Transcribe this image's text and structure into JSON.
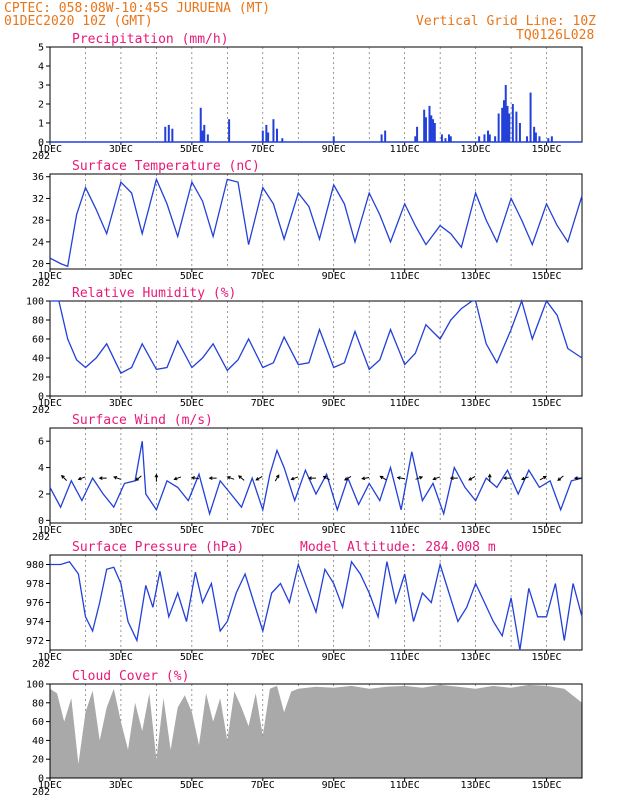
{
  "header": {
    "line1": "CPTEC:  058:08W-10:45S  JURUENA (MT)",
    "line2": "01DEC2020 10Z (GMT)",
    "grid_note": "Vertical Grid Line: 10Z",
    "code": "TQ0126L028"
  },
  "colors": {
    "header": "#e8761a",
    "title": "#e8197a",
    "series": "#2340d8",
    "cloud": "#a9a9a9",
    "wind_arrow": "#000000"
  },
  "x_ticks": [
    "1DEC",
    "3DEC",
    "5DEC",
    "7DEC",
    "9DEC",
    "11DEC",
    "13DEC",
    "15DEC"
  ],
  "year_label": "202",
  "chart_data": [
    {
      "id": "precip",
      "type": "bar",
      "title": "Precipitation (mm/h)",
      "ylim": [
        0,
        5
      ],
      "yticks": [
        0,
        1,
        2,
        3,
        4,
        5
      ],
      "x_unit": "days since 01DEC 10Z",
      "xlim": [
        0,
        15
      ],
      "x": [
        3.25,
        3.35,
        3.45,
        4.25,
        4.3,
        4.35,
        4.45,
        5.05,
        6.0,
        6.1,
        6.15,
        6.3,
        6.4,
        6.55,
        8.0,
        9.35,
        9.45,
        10.3,
        10.35,
        10.55,
        10.6,
        10.7,
        10.75,
        10.8,
        10.85,
        11.05,
        11.15,
        11.25,
        11.3,
        12.1,
        12.25,
        12.35,
        12.4,
        12.55,
        12.65,
        12.75,
        12.8,
        12.85,
        12.9,
        12.95,
        13.05,
        13.15,
        13.25,
        13.45,
        13.55,
        13.65,
        13.7,
        13.8,
        14.05,
        14.15
      ],
      "values": [
        0.8,
        0.9,
        0.7,
        1.8,
        0.6,
        0.9,
        0.4,
        1.2,
        0.6,
        0.9,
        0.5,
        1.2,
        0.7,
        0.2,
        0.3,
        0.4,
        0.6,
        0.3,
        0.8,
        1.7,
        1.3,
        1.9,
        1.4,
        1.2,
        1.0,
        0.4,
        0.2,
        0.4,
        0.3,
        0.3,
        0.4,
        0.6,
        0.4,
        0.3,
        1.5,
        1.8,
        2.2,
        3.0,
        1.9,
        1.5,
        2.0,
        1.6,
        1.0,
        0.3,
        2.6,
        0.8,
        0.5,
        0.3,
        0.2,
        0.3
      ]
    },
    {
      "id": "temp",
      "type": "line",
      "title": "Surface Temperature (nC)",
      "ylim": [
        19,
        36.5
      ],
      "yticks": [
        20,
        24,
        28,
        32,
        36
      ],
      "x": [
        0,
        0.3,
        0.5,
        0.75,
        1.0,
        1.3,
        1.6,
        2.0,
        2.3,
        2.6,
        3.0,
        3.3,
        3.6,
        4.0,
        4.3,
        4.6,
        5.0,
        5.3,
        5.6,
        6.0,
        6.3,
        6.6,
        7.0,
        7.3,
        7.6,
        8.0,
        8.3,
        8.6,
        9.0,
        9.3,
        9.6,
        10.0,
        10.3,
        10.6,
        11.0,
        11.3,
        11.6,
        12.0,
        12.3,
        12.6,
        13.0,
        13.3,
        13.6,
        14.0,
        14.3,
        14.6,
        15.0
      ],
      "values": [
        21.0,
        20.0,
        19.5,
        29.0,
        34.0,
        30.0,
        25.5,
        35.0,
        33.0,
        25.5,
        35.5,
        31.0,
        25.0,
        35.0,
        31.5,
        25.0,
        35.5,
        35.0,
        23.5,
        34.0,
        31.0,
        24.5,
        33.0,
        30.5,
        24.5,
        34.5,
        31.0,
        24.0,
        33.0,
        29.0,
        24.0,
        31.0,
        27.0,
        23.5,
        27.0,
        25.5,
        23.0,
        33.0,
        28.0,
        24.0,
        32.0,
        28.0,
        23.5,
        31.0,
        27.0,
        24.0,
        32.5
      ]
    },
    {
      "id": "rh",
      "type": "line",
      "title": "Relative Humidity (%)",
      "ylim": [
        0,
        100
      ],
      "yticks": [
        0,
        20,
        40,
        60,
        80,
        100
      ],
      "x": [
        0,
        0.25,
        0.5,
        0.75,
        1.0,
        1.3,
        1.6,
        2.0,
        2.3,
        2.6,
        3.0,
        3.3,
        3.6,
        4.0,
        4.3,
        4.6,
        5.0,
        5.3,
        5.6,
        6.0,
        6.3,
        6.6,
        7.0,
        7.3,
        7.6,
        8.0,
        8.3,
        8.6,
        9.0,
        9.3,
        9.6,
        10.0,
        10.3,
        10.6,
        11.0,
        11.3,
        11.6,
        11.9,
        12.0,
        12.3,
        12.6,
        13.0,
        13.3,
        13.6,
        14.0,
        14.3,
        14.6,
        15.0
      ],
      "values": [
        100,
        100,
        60,
        38,
        30,
        40,
        55,
        24,
        30,
        55,
        28,
        30,
        58,
        30,
        40,
        55,
        27,
        38,
        60,
        30,
        35,
        62,
        33,
        35,
        70,
        30,
        35,
        68,
        28,
        38,
        70,
        33,
        45,
        75,
        60,
        80,
        92,
        100,
        100,
        55,
        35,
        70,
        100,
        60,
        100,
        85,
        50,
        40
      ]
    },
    {
      "id": "wind",
      "type": "line",
      "title": "Surface Wind (m/s)",
      "ylim": [
        -0.2,
        7.0
      ],
      "yticks": [
        0,
        2,
        4,
        6
      ],
      "x": [
        0,
        0.3,
        0.6,
        0.9,
        1.2,
        1.5,
        1.8,
        2.1,
        2.4,
        2.6,
        2.7,
        3.0,
        3.3,
        3.6,
        3.9,
        4.2,
        4.5,
        4.8,
        5.1,
        5.4,
        5.7,
        6.0,
        6.2,
        6.4,
        6.6,
        6.9,
        7.2,
        7.5,
        7.8,
        8.1,
        8.4,
        8.7,
        9.0,
        9.3,
        9.6,
        9.9,
        10.2,
        10.5,
        10.8,
        11.1,
        11.4,
        11.7,
        12.0,
        12.3,
        12.6,
        12.9,
        13.2,
        13.5,
        13.8,
        14.1,
        14.4,
        14.7,
        15.0
      ],
      "values": [
        2.5,
        1.0,
        3.0,
        1.5,
        3.2,
        2.0,
        1.0,
        2.8,
        3.0,
        6.0,
        2.0,
        0.8,
        3.0,
        2.5,
        1.5,
        3.5,
        0.5,
        3.0,
        2.0,
        1.0,
        3.2,
        0.8,
        3.5,
        5.3,
        4.0,
        1.5,
        3.8,
        2.0,
        3.5,
        0.8,
        3.2,
        1.2,
        2.8,
        1.5,
        4.0,
        0.8,
        5.2,
        1.5,
        2.8,
        0.5,
        4.0,
        2.5,
        1.5,
        3.2,
        2.5,
        3.8,
        2.0,
        3.8,
        2.5,
        3.0,
        0.8,
        3.0,
        3.2
      ],
      "arrows_x": [
        0.4,
        0.9,
        1.5,
        1.9,
        2.5,
        3.0,
        3.6,
        4.1,
        4.6,
        5.1,
        5.4,
        5.9,
        6.4,
        6.9,
        7.4,
        7.8,
        8.4,
        8.9,
        9.4,
        9.9,
        10.4,
        10.9,
        11.4,
        11.9,
        12.4,
        12.9,
        13.4,
        13.9,
        14.4,
        14.9
      ],
      "arrows_dir": [
        135,
        200,
        180,
        160,
        220,
        90,
        200,
        170,
        180,
        160,
        140,
        210,
        60,
        200,
        180,
        150,
        210,
        190,
        150,
        170,
        20,
        200,
        180,
        210,
        90,
        180,
        200,
        30,
        220,
        180
      ]
    },
    {
      "id": "pres",
      "type": "line",
      "title": "Surface Pressure (hPa)",
      "subtitle": "Model Altitude: 284.008 m",
      "ylim": [
        971,
        981
      ],
      "yticks": [
        972,
        974,
        976,
        978,
        980
      ],
      "x": [
        0,
        0.3,
        0.55,
        0.8,
        1.0,
        1.2,
        1.4,
        1.6,
        1.8,
        2.0,
        2.2,
        2.45,
        2.7,
        2.9,
        3.1,
        3.35,
        3.6,
        3.85,
        4.1,
        4.3,
        4.55,
        4.8,
        5.0,
        5.25,
        5.5,
        5.75,
        6.0,
        6.25,
        6.5,
        6.75,
        7.0,
        7.25,
        7.5,
        7.75,
        8.0,
        8.25,
        8.5,
        8.75,
        9.0,
        9.25,
        9.5,
        9.75,
        10.0,
        10.25,
        10.5,
        10.75,
        11.0,
        11.25,
        11.5,
        11.75,
        12.0,
        12.25,
        12.5,
        12.75,
        13.0,
        13.25,
        13.5,
        13.75,
        14.0,
        14.25,
        14.5,
        14.75,
        15.0
      ],
      "values": [
        980.0,
        980.0,
        980.3,
        979.0,
        974.5,
        973.0,
        976.0,
        979.5,
        979.7,
        978.0,
        974.0,
        972.0,
        977.8,
        975.5,
        979.3,
        974.5,
        977.0,
        974.0,
        979.2,
        976.0,
        978.0,
        973.0,
        974.0,
        977.0,
        979.0,
        976.0,
        973.0,
        977.0,
        978.0,
        976.0,
        980.0,
        977.5,
        975.0,
        979.5,
        978.0,
        975.5,
        980.3,
        979.0,
        977.0,
        974.5,
        980.3,
        976.0,
        979.0,
        974.0,
        977.0,
        976.0,
        980.0,
        977.0,
        974.0,
        975.5,
        978.0,
        976.0,
        974.0,
        972.5,
        976.5,
        971.0,
        977.5,
        974.5,
        974.5,
        978.0,
        972.0,
        978.0,
        974.5
      ]
    },
    {
      "id": "cloud",
      "type": "area",
      "title": "Cloud Cover (%)",
      "ylim": [
        0,
        100
      ],
      "yticks": [
        0,
        20,
        40,
        60,
        80,
        100
      ],
      "x": [
        0,
        0.2,
        0.4,
        0.6,
        0.8,
        1.0,
        1.2,
        1.4,
        1.6,
        1.8,
        2.0,
        2.2,
        2.4,
        2.6,
        2.8,
        3.0,
        3.2,
        3.4,
        3.6,
        3.8,
        4.0,
        4.2,
        4.4,
        4.6,
        4.8,
        5.0,
        5.2,
        5.4,
        5.6,
        5.8,
        6.0,
        6.2,
        6.4,
        6.6,
        6.8,
        7.0,
        7.5,
        8.0,
        8.5,
        9.0,
        9.5,
        10.0,
        10.5,
        11.0,
        11.5,
        12.0,
        12.5,
        13.0,
        13.5,
        14.0,
        14.5,
        15.0
      ],
      "values": [
        95,
        90,
        60,
        85,
        15,
        70,
        93,
        40,
        75,
        95,
        60,
        30,
        80,
        50,
        90,
        20,
        85,
        30,
        75,
        88,
        70,
        35,
        90,
        60,
        85,
        40,
        92,
        75,
        55,
        90,
        45,
        95,
        98,
        70,
        92,
        95,
        97,
        96,
        98,
        95,
        97,
        98,
        96,
        99,
        97,
        95,
        98,
        96,
        99,
        98,
        95,
        80
      ]
    }
  ]
}
